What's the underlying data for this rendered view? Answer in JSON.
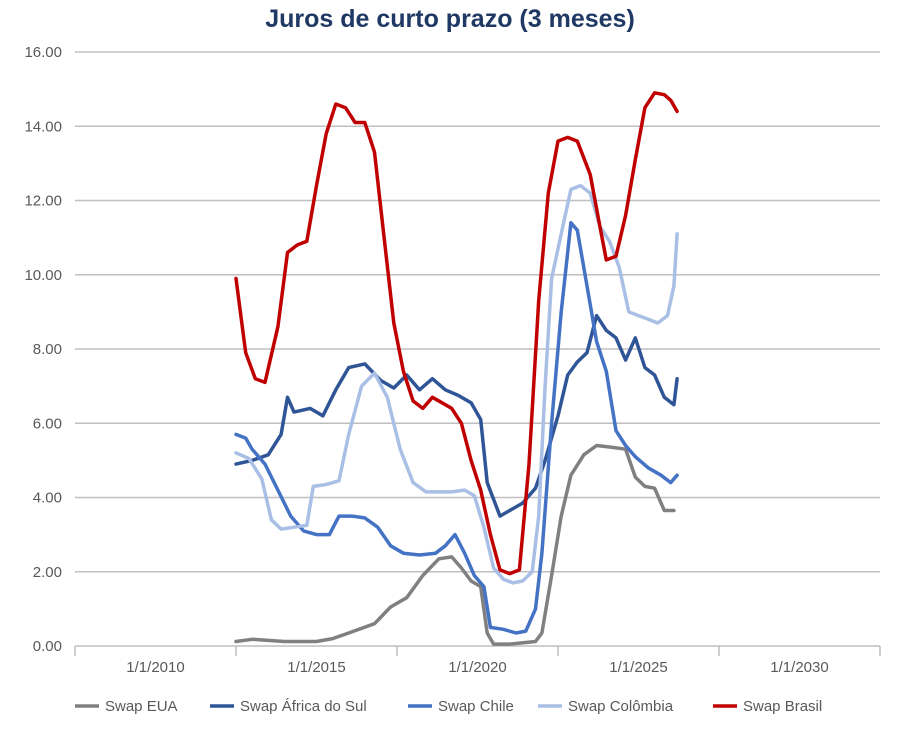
{
  "chart_data": {
    "type": "line",
    "title": "Juros de curto prazo (3 meses)",
    "xlabel": "",
    "ylabel": "",
    "x_tick_labels": [
      "1/1/2010",
      "1/1/2015",
      "1/1/2020",
      "1/1/2025",
      "1/1/2030"
    ],
    "x_ticks": [
      2010,
      2015,
      2020,
      2025,
      2030
    ],
    "xlim": [
      2007.5,
      2032.5
    ],
    "y_tick_labels": [
      "0.00",
      "2.00",
      "4.00",
      "6.00",
      "8.00",
      "10.00",
      "12.00",
      "14.00",
      "16.00"
    ],
    "ylim": [
      0,
      16
    ],
    "grid": true,
    "legend_position": "bottom",
    "series": [
      {
        "name": "Swap EUA",
        "color": "#808080",
        "points": [
          [
            2012.5,
            0.12
          ],
          [
            2013.0,
            0.18
          ],
          [
            2014.0,
            0.12
          ],
          [
            2015.0,
            0.12
          ],
          [
            2015.5,
            0.2
          ],
          [
            2016.0,
            0.35
          ],
          [
            2016.8,
            0.6
          ],
          [
            2017.3,
            1.05
          ],
          [
            2017.8,
            1.3
          ],
          [
            2018.3,
            1.9
          ],
          [
            2018.8,
            2.35
          ],
          [
            2019.2,
            2.4
          ],
          [
            2019.5,
            2.1
          ],
          [
            2019.8,
            1.75
          ],
          [
            2020.1,
            1.6
          ],
          [
            2020.3,
            0.35
          ],
          [
            2020.5,
            0.05
          ],
          [
            2021.0,
            0.05
          ],
          [
            2021.8,
            0.12
          ],
          [
            2022.0,
            0.35
          ],
          [
            2022.3,
            1.9
          ],
          [
            2022.6,
            3.5
          ],
          [
            2022.9,
            4.6
          ],
          [
            2023.3,
            5.15
          ],
          [
            2023.7,
            5.4
          ],
          [
            2024.2,
            5.35
          ],
          [
            2024.6,
            5.3
          ],
          [
            2024.9,
            4.55
          ],
          [
            2025.2,
            4.3
          ],
          [
            2025.5,
            4.25
          ],
          [
            2025.8,
            3.65
          ],
          [
            2026.1,
            3.65
          ]
        ]
      },
      {
        "name": "Swap África do Sul",
        "color": "#2f5597",
        "points": [
          [
            2012.5,
            4.9
          ],
          [
            2013.0,
            5.0
          ],
          [
            2013.5,
            5.15
          ],
          [
            2013.9,
            5.7
          ],
          [
            2014.1,
            6.7
          ],
          [
            2014.3,
            6.3
          ],
          [
            2014.8,
            6.4
          ],
          [
            2015.2,
            6.2
          ],
          [
            2015.6,
            6.9
          ],
          [
            2016.0,
            7.5
          ],
          [
            2016.5,
            7.6
          ],
          [
            2017.0,
            7.15
          ],
          [
            2017.4,
            6.95
          ],
          [
            2017.8,
            7.3
          ],
          [
            2018.2,
            6.9
          ],
          [
            2018.6,
            7.2
          ],
          [
            2019.0,
            6.9
          ],
          [
            2019.4,
            6.75
          ],
          [
            2019.8,
            6.55
          ],
          [
            2020.1,
            6.1
          ],
          [
            2020.3,
            4.4
          ],
          [
            2020.7,
            3.5
          ],
          [
            2021.0,
            3.65
          ],
          [
            2021.4,
            3.85
          ],
          [
            2021.8,
            4.25
          ],
          [
            2022.1,
            5.0
          ],
          [
            2022.5,
            6.2
          ],
          [
            2022.8,
            7.3
          ],
          [
            2023.1,
            7.65
          ],
          [
            2023.4,
            7.9
          ],
          [
            2023.7,
            8.9
          ],
          [
            2024.0,
            8.5
          ],
          [
            2024.3,
            8.3
          ],
          [
            2024.6,
            7.7
          ],
          [
            2024.9,
            8.3
          ],
          [
            2025.2,
            7.5
          ],
          [
            2025.5,
            7.3
          ],
          [
            2025.8,
            6.7
          ],
          [
            2026.1,
            6.5
          ],
          [
            2026.2,
            7.2
          ]
        ]
      },
      {
        "name": "Swap Chile",
        "color": "#4472c4",
        "points": [
          [
            2012.5,
            5.7
          ],
          [
            2012.8,
            5.6
          ],
          [
            2013.0,
            5.3
          ],
          [
            2013.4,
            4.9
          ],
          [
            2013.8,
            4.2
          ],
          [
            2014.2,
            3.5
          ],
          [
            2014.6,
            3.1
          ],
          [
            2015.0,
            3.0
          ],
          [
            2015.4,
            3.0
          ],
          [
            2015.7,
            3.5
          ],
          [
            2016.1,
            3.5
          ],
          [
            2016.5,
            3.45
          ],
          [
            2016.9,
            3.2
          ],
          [
            2017.3,
            2.7
          ],
          [
            2017.7,
            2.5
          ],
          [
            2018.2,
            2.45
          ],
          [
            2018.7,
            2.5
          ],
          [
            2019.0,
            2.7
          ],
          [
            2019.3,
            3.0
          ],
          [
            2019.6,
            2.5
          ],
          [
            2019.9,
            1.9
          ],
          [
            2020.2,
            1.6
          ],
          [
            2020.4,
            0.5
          ],
          [
            2020.8,
            0.45
          ],
          [
            2021.2,
            0.35
          ],
          [
            2021.5,
            0.4
          ],
          [
            2021.8,
            1.0
          ],
          [
            2022.0,
            2.5
          ],
          [
            2022.3,
            6.0
          ],
          [
            2022.6,
            9.0
          ],
          [
            2022.9,
            11.4
          ],
          [
            2023.1,
            11.2
          ],
          [
            2023.4,
            9.7
          ],
          [
            2023.7,
            8.2
          ],
          [
            2024.0,
            7.4
          ],
          [
            2024.3,
            5.8
          ],
          [
            2024.6,
            5.4
          ],
          [
            2024.9,
            5.1
          ],
          [
            2025.3,
            4.8
          ],
          [
            2025.7,
            4.6
          ],
          [
            2026.0,
            4.4
          ],
          [
            2026.2,
            4.6
          ]
        ]
      },
      {
        "name": "Swap Colômbia",
        "color": "#a9bfe5",
        "points": [
          [
            2012.5,
            5.2
          ],
          [
            2012.9,
            5.05
          ],
          [
            2013.3,
            4.5
          ],
          [
            2013.6,
            3.4
          ],
          [
            2013.9,
            3.15
          ],
          [
            2014.3,
            3.2
          ],
          [
            2014.7,
            3.25
          ],
          [
            2014.9,
            4.3
          ],
          [
            2015.3,
            4.35
          ],
          [
            2015.7,
            4.45
          ],
          [
            2016.0,
            5.7
          ],
          [
            2016.4,
            7.0
          ],
          [
            2016.8,
            7.35
          ],
          [
            2017.2,
            6.7
          ],
          [
            2017.6,
            5.3
          ],
          [
            2018.0,
            4.4
          ],
          [
            2018.4,
            4.15
          ],
          [
            2018.8,
            4.15
          ],
          [
            2019.2,
            4.15
          ],
          [
            2019.6,
            4.2
          ],
          [
            2019.9,
            4.05
          ],
          [
            2020.2,
            3.2
          ],
          [
            2020.5,
            2.1
          ],
          [
            2020.8,
            1.8
          ],
          [
            2021.1,
            1.7
          ],
          [
            2021.4,
            1.75
          ],
          [
            2021.7,
            2.0
          ],
          [
            2021.9,
            3.5
          ],
          [
            2022.1,
            7.0
          ],
          [
            2022.3,
            9.9
          ],
          [
            2022.6,
            11.1
          ],
          [
            2022.9,
            12.3
          ],
          [
            2023.2,
            12.4
          ],
          [
            2023.5,
            12.2
          ],
          [
            2023.8,
            11.3
          ],
          [
            2024.1,
            10.9
          ],
          [
            2024.4,
            10.2
          ],
          [
            2024.7,
            9.0
          ],
          [
            2025.0,
            8.9
          ],
          [
            2025.3,
            8.8
          ],
          [
            2025.6,
            8.7
          ],
          [
            2025.9,
            8.9
          ],
          [
            2026.1,
            9.7
          ],
          [
            2026.2,
            11.1
          ]
        ]
      },
      {
        "name": "Swap Brasil",
        "color": "#c00000",
        "points": [
          [
            2012.5,
            9.9
          ],
          [
            2012.8,
            7.9
          ],
          [
            2013.1,
            7.2
          ],
          [
            2013.4,
            7.1
          ],
          [
            2013.8,
            8.6
          ],
          [
            2014.1,
            10.6
          ],
          [
            2014.4,
            10.8
          ],
          [
            2014.7,
            10.9
          ],
          [
            2015.0,
            12.4
          ],
          [
            2015.3,
            13.8
          ],
          [
            2015.6,
            14.6
          ],
          [
            2015.9,
            14.5
          ],
          [
            2016.2,
            14.1
          ],
          [
            2016.5,
            14.1
          ],
          [
            2016.8,
            13.3
          ],
          [
            2017.1,
            11.0
          ],
          [
            2017.4,
            8.7
          ],
          [
            2017.7,
            7.4
          ],
          [
            2018.0,
            6.6
          ],
          [
            2018.3,
            6.4
          ],
          [
            2018.6,
            6.7
          ],
          [
            2018.9,
            6.55
          ],
          [
            2019.2,
            6.4
          ],
          [
            2019.5,
            6.0
          ],
          [
            2019.8,
            5.0
          ],
          [
            2020.1,
            4.2
          ],
          [
            2020.4,
            3.0
          ],
          [
            2020.7,
            2.05
          ],
          [
            2021.0,
            1.95
          ],
          [
            2021.3,
            2.05
          ],
          [
            2021.6,
            4.9
          ],
          [
            2021.9,
            9.3
          ],
          [
            2022.2,
            12.2
          ],
          [
            2022.5,
            13.6
          ],
          [
            2022.8,
            13.7
          ],
          [
            2023.1,
            13.6
          ],
          [
            2023.5,
            12.7
          ],
          [
            2023.8,
            11.3
          ],
          [
            2024.0,
            10.4
          ],
          [
            2024.3,
            10.5
          ],
          [
            2024.6,
            11.6
          ],
          [
            2024.9,
            13.1
          ],
          [
            2025.2,
            14.5
          ],
          [
            2025.5,
            14.9
          ],
          [
            2025.8,
            14.85
          ],
          [
            2026.0,
            14.7
          ],
          [
            2026.2,
            14.4
          ]
        ]
      }
    ]
  }
}
